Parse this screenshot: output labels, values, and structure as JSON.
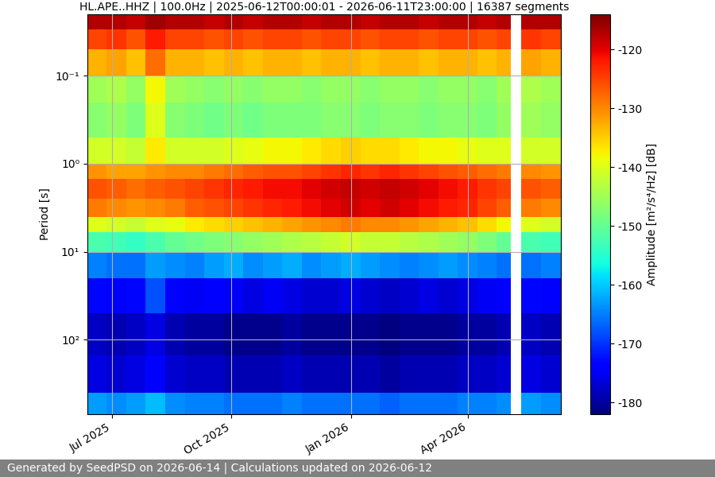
{
  "chart_data": {
    "type": "heatmap",
    "title": "HL.APE..HHZ | 100.0Hz | 2025-06-12T00:00:01 - 2026-06-11T23:00:00 | 16387 segments",
    "y_label": "Period [s]",
    "colorbar_label": "Amplitude [m²/s⁴/Hz] [dB]",
    "footer": "Generated by SeedPSD on 2026-06-14 | Calculations updated on 2026-06-12",
    "log": "y",
    "grid": true,
    "x": [
      "2025-06-12",
      "2025-06-27",
      "2025-07-12",
      "2025-07-27",
      "2025-08-11",
      "2025-08-26",
      "2025-09-10",
      "2025-09-25",
      "2025-10-10",
      "2025-10-25",
      "2025-11-09",
      "2025-11-24",
      "2025-12-09",
      "2025-12-24",
      "2026-01-08",
      "2026-01-23",
      "2026-02-07",
      "2026-02-22",
      "2026-03-09",
      "2026-03-24",
      "2026-04-08",
      "2026-04-23",
      "2026-05-04",
      "2026-05-12",
      "2026-05-27",
      "2026-06-11"
    ],
    "period_edges": [
      0.02,
      0.03,
      0.05,
      0.1,
      0.2,
      0.5,
      1,
      1.5,
      2.5,
      4,
      6,
      10,
      20,
      50,
      150,
      400,
      700
    ],
    "cells": [
      [
        -117,
        -117,
        -118,
        -116,
        -117,
        -117,
        -118,
        -117,
        -118,
        -117,
        -117,
        -118,
        -117,
        -117,
        -118,
        -117,
        -117,
        -118,
        -117,
        -117,
        -118,
        -117,
        null,
        -117,
        -117
      ],
      [
        -125,
        -124,
        -126,
        -122,
        -125,
        -125,
        -126,
        -125,
        -126,
        -125,
        -125,
        -126,
        -125,
        -125,
        -126,
        -125,
        -125,
        -126,
        -125,
        -125,
        -126,
        -125,
        null,
        -124,
        -125
      ],
      [
        -133,
        -132,
        -134,
        -128,
        -133,
        -133,
        -134,
        -133,
        -134,
        -133,
        -133,
        -134,
        -133,
        -133,
        -134,
        -133,
        -133,
        -134,
        -133,
        -133,
        -134,
        -133,
        null,
        -132,
        -133
      ],
      [
        -145,
        -144,
        -146,
        -138,
        -145,
        -146,
        -147,
        -146,
        -147,
        -146,
        -146,
        -147,
        -146,
        -146,
        -147,
        -146,
        -146,
        -147,
        -146,
        -146,
        -147,
        -145,
        null,
        -144,
        -145
      ],
      [
        -147,
        -146,
        -148,
        -140,
        -147,
        -148,
        -149,
        -148,
        -149,
        -148,
        -148,
        -148,
        -147,
        -147,
        -148,
        -147,
        -147,
        -148,
        -147,
        -147,
        -148,
        -146,
        null,
        -145,
        -146
      ],
      [
        -141,
        -141,
        -142,
        -137,
        -141,
        -141,
        -141,
        -140,
        -139,
        -138,
        -138,
        -137,
        -136,
        -135,
        -136,
        -136,
        -137,
        -138,
        -138,
        -139,
        -140,
        -140,
        null,
        -141,
        -141
      ],
      [
        -131,
        -132,
        -132,
        -131,
        -130,
        -130,
        -129,
        -128,
        -127,
        -126,
        -126,
        -125,
        -124,
        -123,
        -124,
        -123,
        -124,
        -125,
        -126,
        -127,
        -128,
        -129,
        null,
        -130,
        -131
      ],
      [
        -126,
        -127,
        -128,
        -127,
        -126,
        -125,
        -124,
        -123,
        -122,
        -121,
        -121,
        -120,
        -119,
        -118,
        -119,
        -118,
        -119,
        -120,
        -121,
        -122,
        -124,
        -125,
        null,
        -126,
        -127
      ],
      [
        -129,
        -130,
        -131,
        -130,
        -129,
        -127,
        -126,
        -125,
        -124,
        -123,
        -122,
        -121,
        -120,
        -119,
        -120,
        -119,
        -120,
        -121,
        -122,
        -123,
        -125,
        -127,
        null,
        -129,
        -130
      ],
      [
        -140,
        -141,
        -142,
        -140,
        -139,
        -137,
        -136,
        -135,
        -134,
        -133,
        -132,
        -131,
        -130,
        -129,
        -130,
        -130,
        -131,
        -132,
        -133,
        -134,
        -136,
        -138,
        null,
        -140,
        -141
      ],
      [
        -152,
        -153,
        -154,
        -152,
        -150,
        -149,
        -148,
        -147,
        -146,
        -145,
        -144,
        -143,
        -142,
        -141,
        -142,
        -142,
        -143,
        -144,
        -145,
        -146,
        -148,
        -150,
        null,
        -152,
        -153
      ],
      [
        -165,
        -166,
        -166,
        -163,
        -164,
        -165,
        -163,
        -162,
        -164,
        -163,
        -162,
        -164,
        -163,
        -162,
        -163,
        -164,
        -165,
        -164,
        -163,
        -164,
        -165,
        -166,
        null,
        -166,
        -165
      ],
      [
        -173,
        -174,
        -173,
        -168,
        -174,
        -175,
        -174,
        -175,
        -176,
        -175,
        -176,
        -177,
        -177,
        -176,
        -177,
        -178,
        -177,
        -176,
        -177,
        -176,
        -175,
        -174,
        null,
        -173,
        -174
      ],
      [
        -178,
        -179,
        -178,
        -176,
        -179,
        -180,
        -180,
        -181,
        -181,
        -181,
        -180,
        -181,
        -181,
        -181,
        -181,
        -182,
        -181,
        -181,
        -181,
        -180,
        -180,
        -179,
        null,
        -178,
        -179
      ],
      [
        -176,
        -177,
        -176,
        -174,
        -177,
        -178,
        -178,
        -179,
        -179,
        -179,
        -178,
        -179,
        -179,
        -179,
        -179,
        -180,
        -179,
        -179,
        -179,
        -178,
        -178,
        -177,
        null,
        -176,
        -177
      ],
      [
        -163,
        -164,
        -163,
        -161,
        -164,
        -165,
        -165,
        -166,
        -166,
        -166,
        -165,
        -166,
        -166,
        -166,
        -166,
        -167,
        -166,
        -166,
        -166,
        -165,
        -165,
        -164,
        null,
        -163,
        -164
      ]
    ],
    "xlim": [
      "2025-06-12",
      "2026-06-11"
    ],
    "xticks": [
      {
        "value": "2025-07-01",
        "label": "Jul 2025"
      },
      {
        "value": "2025-10-01",
        "label": "Oct 2025"
      },
      {
        "value": "2026-01-01",
        "label": "Jan 2026"
      },
      {
        "value": "2026-04-01",
        "label": "Apr 2026"
      }
    ],
    "ylim": [
      700,
      0.02
    ],
    "yticks": [
      {
        "value": 0.1,
        "label": "10⁻¹"
      },
      {
        "value": 1,
        "label": "10⁰"
      },
      {
        "value": 10,
        "label": "10¹"
      },
      {
        "value": 100,
        "label": "10²"
      }
    ],
    "colorbar_lim": [
      -182,
      -114
    ],
    "colorbar_ticks": [
      -180,
      -170,
      -160,
      -150,
      -140,
      -130,
      -120
    ]
  }
}
